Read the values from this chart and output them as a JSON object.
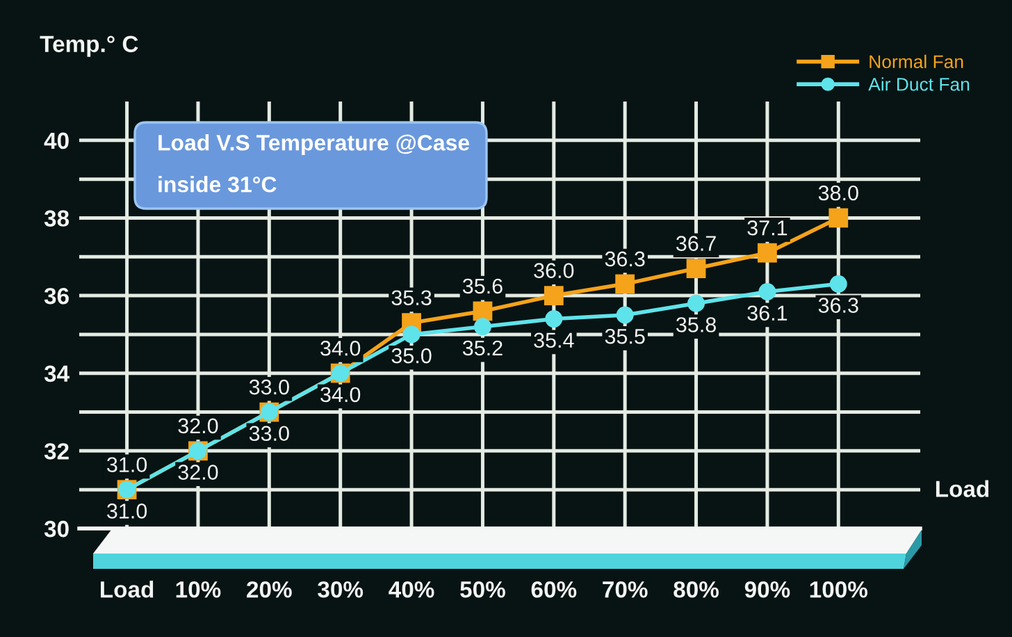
{
  "chart_data": {
    "type": "line",
    "title": "Load V.S Temperature @Case",
    "subtitle": "inside 31°C",
    "xlabel": "Load",
    "ylabel": "Temp.° C",
    "categories": [
      "Load",
      "10%",
      "20%",
      "30%",
      "40%",
      "50%",
      "60%",
      "70%",
      "80%",
      "90%",
      "100%"
    ],
    "series": [
      {
        "name": "Normal Fan",
        "color": "#f5a31a",
        "marker": "square",
        "values": [
          31.0,
          32.0,
          33.0,
          34.0,
          35.3,
          35.6,
          36.0,
          36.3,
          36.7,
          37.1,
          38.0
        ],
        "value_labels": [
          "31.0",
          "32.0",
          "33.0",
          "34.0",
          "35.3",
          "35.6",
          "36.0",
          "36.3",
          "36.7",
          "37.1",
          "38.0"
        ]
      },
      {
        "name": "Air Duct Fan",
        "color": "#5fe3ea",
        "marker": "circle",
        "values": [
          31.0,
          32.0,
          33.0,
          34.0,
          35.0,
          35.2,
          35.4,
          35.5,
          35.8,
          36.1,
          36.3
        ],
        "value_labels": [
          "31.0",
          "32.0",
          "33.0",
          "34.0",
          "35.0",
          "35.2",
          "35.4",
          "35.5",
          "35.8",
          "36.1",
          "36.3"
        ]
      }
    ],
    "ylim": [
      30,
      41
    ],
    "yticks": [
      30,
      {
        "value": 31,
        "label": null
      },
      32,
      {
        "value": 33,
        "label": null
      },
      34,
      {
        "value": 35,
        "label": null
      },
      36,
      {
        "value": 37,
        "label": null
      },
      38,
      {
        "value": 39,
        "label": null
      },
      40
    ],
    "grid": true,
    "legend": "top right"
  }
}
